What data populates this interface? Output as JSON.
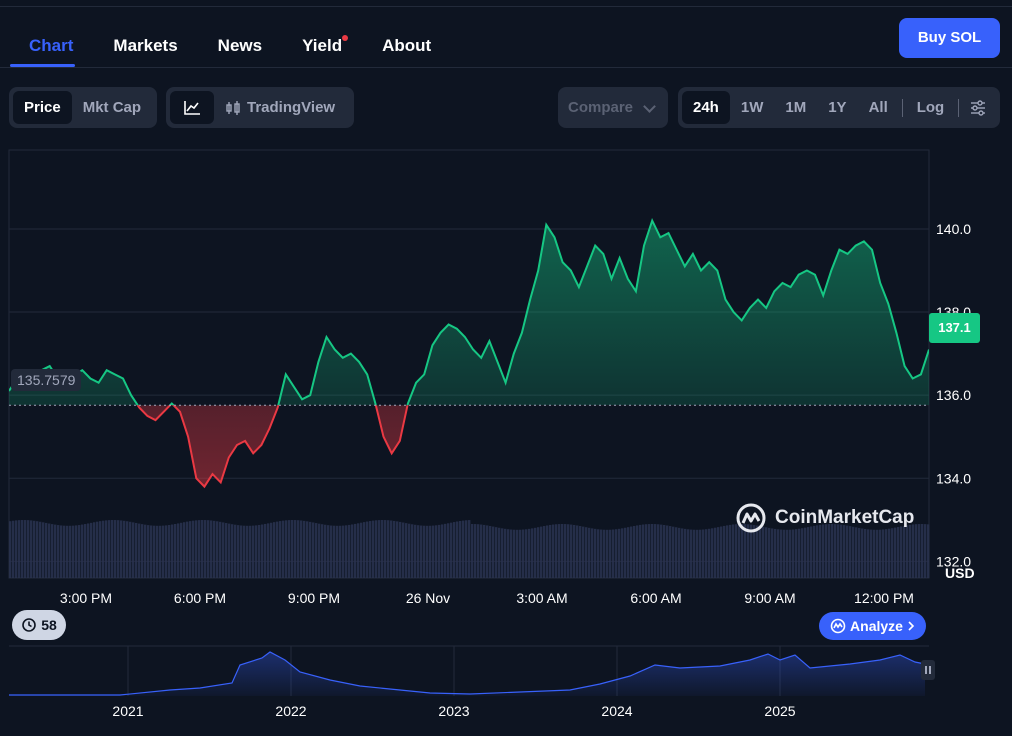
{
  "nav": {
    "tabs": [
      "Chart",
      "Markets",
      "News",
      "Yield",
      "About"
    ],
    "buy_label": "Buy SOL"
  },
  "toolbar": {
    "price_label": "Price",
    "mktcap_label": "Mkt Cap",
    "tradingview_label": "TradingView",
    "compare_label": "Compare",
    "ranges": [
      "24h",
      "1W",
      "1M",
      "1Y",
      "All"
    ],
    "log_label": "Log",
    "icons": [
      "line-chart-icon",
      "candlestick-icon",
      "chevron-down-icon",
      "settings-sliders-icon"
    ]
  },
  "chart_data": {
    "type": "area",
    "currency": "USD",
    "baseline": 135.7579,
    "baseline_label": "135.7579",
    "current_label": "137.1",
    "ylim": [
      131.6,
      141.9
    ],
    "yticks": [
      "140.0",
      "138.0",
      "136.0",
      "134.0",
      "132.0"
    ],
    "xticks": [
      "3:00 PM",
      "6:00 PM",
      "9:00 PM",
      "26 Nov",
      "3:00 AM",
      "6:00 AM",
      "9:00 AM",
      "12:00 PM"
    ],
    "colors": {
      "up": "#16c784",
      "down": "#ea3943",
      "volume": "#2a3350"
    },
    "series": [
      {
        "points": [
          [
            0,
            136.1
          ],
          [
            1,
            136.4
          ],
          [
            2,
            136.5
          ],
          [
            3,
            136.3
          ],
          [
            4,
            136.6
          ],
          [
            5,
            136.7
          ],
          [
            6,
            136.4
          ],
          [
            7,
            136.3
          ],
          [
            8,
            136.5
          ],
          [
            9,
            136.6
          ],
          [
            10,
            136.4
          ],
          [
            11,
            136.3
          ],
          [
            12,
            136.6
          ],
          [
            13,
            136.5
          ],
          [
            14,
            136.4
          ],
          [
            15,
            136.0
          ],
          [
            16,
            135.7
          ],
          [
            17,
            135.5
          ],
          [
            18,
            135.4
          ],
          [
            19,
            135.6
          ],
          [
            20,
            135.8
          ],
          [
            21,
            135.6
          ],
          [
            22,
            135.0
          ],
          [
            23,
            134.0
          ],
          [
            24,
            133.8
          ],
          [
            25,
            134.1
          ],
          [
            26,
            133.9
          ],
          [
            27,
            134.5
          ],
          [
            28,
            134.8
          ],
          [
            29,
            134.9
          ],
          [
            30,
            134.6
          ],
          [
            31,
            134.8
          ],
          [
            32,
            135.2
          ],
          [
            33,
            135.7
          ],
          [
            34,
            136.5
          ],
          [
            35,
            136.2
          ],
          [
            36,
            135.9
          ],
          [
            37,
            136.0
          ],
          [
            38,
            136.8
          ],
          [
            39,
            137.4
          ],
          [
            40,
            137.1
          ],
          [
            41,
            136.9
          ],
          [
            42,
            137.0
          ],
          [
            43,
            136.8
          ],
          [
            44,
            136.5
          ],
          [
            45,
            135.8
          ],
          [
            46,
            135.0
          ],
          [
            47,
            134.6
          ],
          [
            48,
            134.9
          ],
          [
            49,
            135.8
          ],
          [
            50,
            136.3
          ],
          [
            51,
            136.5
          ],
          [
            52,
            137.2
          ],
          [
            53,
            137.5
          ],
          [
            54,
            137.7
          ],
          [
            55,
            137.6
          ],
          [
            56,
            137.4
          ],
          [
            57,
            137.1
          ],
          [
            58,
            136.9
          ],
          [
            59,
            137.3
          ],
          [
            60,
            136.8
          ],
          [
            61,
            136.3
          ],
          [
            62,
            137.0
          ],
          [
            63,
            137.5
          ],
          [
            64,
            138.3
          ],
          [
            65,
            139.0
          ],
          [
            66,
            140.1
          ],
          [
            67,
            139.8
          ],
          [
            68,
            139.2
          ],
          [
            69,
            139.0
          ],
          [
            70,
            138.6
          ],
          [
            71,
            139.1
          ],
          [
            72,
            139.6
          ],
          [
            73,
            139.4
          ],
          [
            74,
            138.8
          ],
          [
            75,
            139.3
          ],
          [
            76,
            138.8
          ],
          [
            77,
            138.5
          ],
          [
            78,
            139.6
          ],
          [
            79,
            140.2
          ],
          [
            80,
            139.8
          ],
          [
            81,
            139.9
          ],
          [
            82,
            139.5
          ],
          [
            83,
            139.1
          ],
          [
            84,
            139.4
          ],
          [
            85,
            139.0
          ],
          [
            86,
            139.2
          ],
          [
            87,
            139.0
          ],
          [
            88,
            138.3
          ],
          [
            89,
            138.0
          ],
          [
            90,
            137.8
          ],
          [
            91,
            138.1
          ],
          [
            92,
            138.3
          ],
          [
            93,
            138.1
          ],
          [
            94,
            138.5
          ],
          [
            95,
            138.7
          ],
          [
            96,
            138.6
          ],
          [
            97,
            138.9
          ],
          [
            98,
            139.0
          ],
          [
            99,
            138.9
          ],
          [
            100,
            138.4
          ],
          [
            101,
            139.0
          ],
          [
            102,
            139.5
          ],
          [
            103,
            139.4
          ],
          [
            104,
            139.6
          ],
          [
            105,
            139.7
          ],
          [
            106,
            139.5
          ],
          [
            107,
            138.7
          ],
          [
            108,
            138.2
          ],
          [
            109,
            137.5
          ],
          [
            110,
            136.7
          ],
          [
            111,
            136.4
          ],
          [
            112,
            136.5
          ],
          [
            113,
            137.1
          ]
        ]
      }
    ],
    "volume_level": 0.82,
    "overview": {
      "xticks": [
        "2021",
        "2022",
        "2023",
        "2024",
        "2025"
      ]
    }
  },
  "misc": {
    "watermark": "CoinMarketCap",
    "history_count": "58",
    "analyze_label": "Analyze"
  }
}
